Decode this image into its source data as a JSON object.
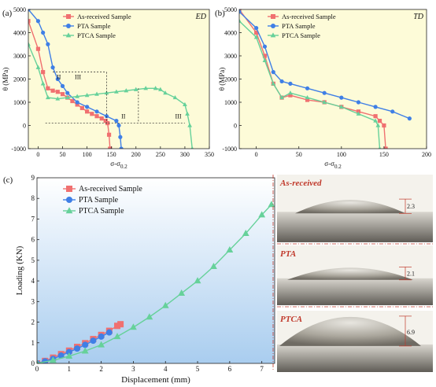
{
  "colors": {
    "as_received": "#f07070",
    "pta": "#3f7fe6",
    "ptca": "#66d19a",
    "panel_top_bg": "#fdfbd8",
    "panel_c_bg_top": "#ffffff",
    "panel_c_bg_bottom": "#a9cdef",
    "divider": "#c0392b"
  },
  "chart_data": [
    {
      "id": "a",
      "type": "line",
      "panel_label": "(a)",
      "corner_label": "ED",
      "xlabel": "σ-σ",
      "xlabel_sub": "0.2",
      "ylabel": "θ (MPa)",
      "xlim": [
        -20,
        350
      ],
      "ylim": [
        -1000,
        5000
      ],
      "xticks": [
        0,
        50,
        100,
        150,
        200,
        250,
        300,
        350
      ],
      "yticks": [
        -1000,
        0,
        1000,
        2000,
        3000,
        4000,
        5000
      ],
      "legend_position": "top-left",
      "series": [
        {
          "name": "As-received Sample",
          "marker": "square",
          "color_key": "as_received",
          "x": [
            -20,
            0,
            10,
            20,
            30,
            40,
            50,
            60,
            70,
            80,
            90,
            100,
            110,
            120,
            130,
            138,
            142,
            145,
            147
          ],
          "y": [
            4500,
            3300,
            2300,
            1600,
            1500,
            1450,
            1350,
            1200,
            1050,
            900,
            750,
            600,
            500,
            400,
            300,
            200,
            100,
            -400,
            -1000
          ]
        },
        {
          "name": "PTA Sample",
          "marker": "circle",
          "color_key": "pta",
          "x": [
            -20,
            0,
            10,
            20,
            30,
            40,
            50,
            60,
            80,
            100,
            120,
            140,
            160,
            165,
            168,
            170
          ],
          "y": [
            5000,
            4500,
            4000,
            3500,
            2500,
            2000,
            1700,
            1400,
            1000,
            800,
            600,
            400,
            200,
            0,
            -500,
            -1000
          ]
        },
        {
          "name": "PTCA Sample",
          "marker": "triangle",
          "color_key": "ptca",
          "x": [
            -20,
            0,
            10,
            20,
            40,
            60,
            80,
            100,
            120,
            140,
            160,
            180,
            200,
            220,
            240,
            250,
            260,
            280,
            300,
            305,
            310,
            315
          ],
          "y": [
            3500,
            2500,
            1800,
            1200,
            1150,
            1200,
            1250,
            1300,
            1350,
            1400,
            1450,
            1500,
            1550,
            1600,
            1600,
            1550,
            1400,
            1200,
            900,
            500,
            0,
            -1000
          ]
        }
      ],
      "annotations": [
        "II",
        "III",
        "II",
        "III"
      ]
    },
    {
      "id": "b",
      "type": "line",
      "panel_label": "(b)",
      "corner_label": "TD",
      "xlabel": "σ-σ",
      "xlabel_sub": "0.2",
      "ylabel": "θ (MPa)",
      "xlim": [
        -20,
        200
      ],
      "ylim": [
        -1000,
        5000
      ],
      "xticks": [
        0,
        50,
        100,
        150,
        200
      ],
      "yticks": [
        -1000,
        0,
        1000,
        2000,
        3000,
        4000,
        5000
      ],
      "legend_position": "top-right",
      "series": [
        {
          "name": "As-received Sample",
          "marker": "square",
          "color_key": "as_received",
          "x": [
            -20,
            0,
            10,
            20,
            30,
            40,
            60,
            80,
            100,
            120,
            140,
            145,
            150,
            152
          ],
          "y": [
            5000,
            4000,
            3000,
            1800,
            1200,
            1300,
            1100,
            1000,
            800,
            600,
            400,
            200,
            0,
            -1000
          ]
        },
        {
          "name": "PTA Sample",
          "marker": "circle",
          "color_key": "pta",
          "x": [
            -20,
            0,
            10,
            20,
            30,
            40,
            60,
            80,
            100,
            120,
            140,
            160,
            180
          ],
          "y": [
            4900,
            4200,
            3400,
            2300,
            1900,
            1800,
            1600,
            1400,
            1200,
            1000,
            800,
            600,
            300
          ]
        },
        {
          "name": "PTCA Sample",
          "marker": "triangle",
          "color_key": "ptca",
          "x": [
            -20,
            0,
            10,
            20,
            30,
            40,
            60,
            80,
            100,
            120,
            140,
            143,
            145
          ],
          "y": [
            4500,
            3800,
            2800,
            1800,
            1200,
            1400,
            1200,
            1000,
            800,
            500,
            200,
            0,
            -1000
          ]
        }
      ]
    },
    {
      "id": "c",
      "type": "line",
      "panel_label": "(c)",
      "xlabel": "Displacement (mm)",
      "ylabel": "Loading (KN)",
      "xlim": [
        0,
        7.4
      ],
      "ylim": [
        0,
        9
      ],
      "xticks": [
        0,
        1,
        2,
        3,
        4,
        5,
        6,
        7
      ],
      "yticks": [
        0,
        1,
        2,
        3,
        4,
        5,
        6,
        7,
        8,
        9
      ],
      "legend_position": "top-left",
      "series": [
        {
          "name": "As-received Sample",
          "marker": "square",
          "color_key": "as_received",
          "x": [
            0,
            0.25,
            0.5,
            0.75,
            1.0,
            1.25,
            1.5,
            1.75,
            2.0,
            2.25,
            2.5,
            2.6
          ],
          "y": [
            0,
            0.12,
            0.28,
            0.45,
            0.62,
            0.8,
            0.98,
            1.18,
            1.38,
            1.58,
            1.82,
            1.9
          ]
        },
        {
          "name": "PTA Sample",
          "marker": "circle",
          "color_key": "pta",
          "x": [
            0,
            0.25,
            0.5,
            0.75,
            1.0,
            1.25,
            1.5,
            1.75,
            2.0,
            2.25
          ],
          "y": [
            0,
            0.1,
            0.22,
            0.38,
            0.55,
            0.72,
            0.9,
            1.1,
            1.3,
            1.5
          ]
        },
        {
          "name": "PTCA Sample",
          "marker": "triangle",
          "color_key": "ptca",
          "x": [
            0,
            0.5,
            1.0,
            1.5,
            2.0,
            2.5,
            3.0,
            3.5,
            4.0,
            4.5,
            5.0,
            5.5,
            6.0,
            6.5,
            7.0,
            7.3
          ],
          "y": [
            0,
            0.15,
            0.35,
            0.6,
            0.9,
            1.3,
            1.75,
            2.25,
            2.8,
            3.4,
            4.0,
            4.7,
            5.5,
            6.3,
            7.2,
            7.7
          ]
        }
      ]
    }
  ],
  "photos": [
    {
      "label": "As-received",
      "height_value": "2.3"
    },
    {
      "label": "PTA",
      "height_value": "2.1"
    },
    {
      "label": "PTCA",
      "height_value": "6.9"
    }
  ]
}
